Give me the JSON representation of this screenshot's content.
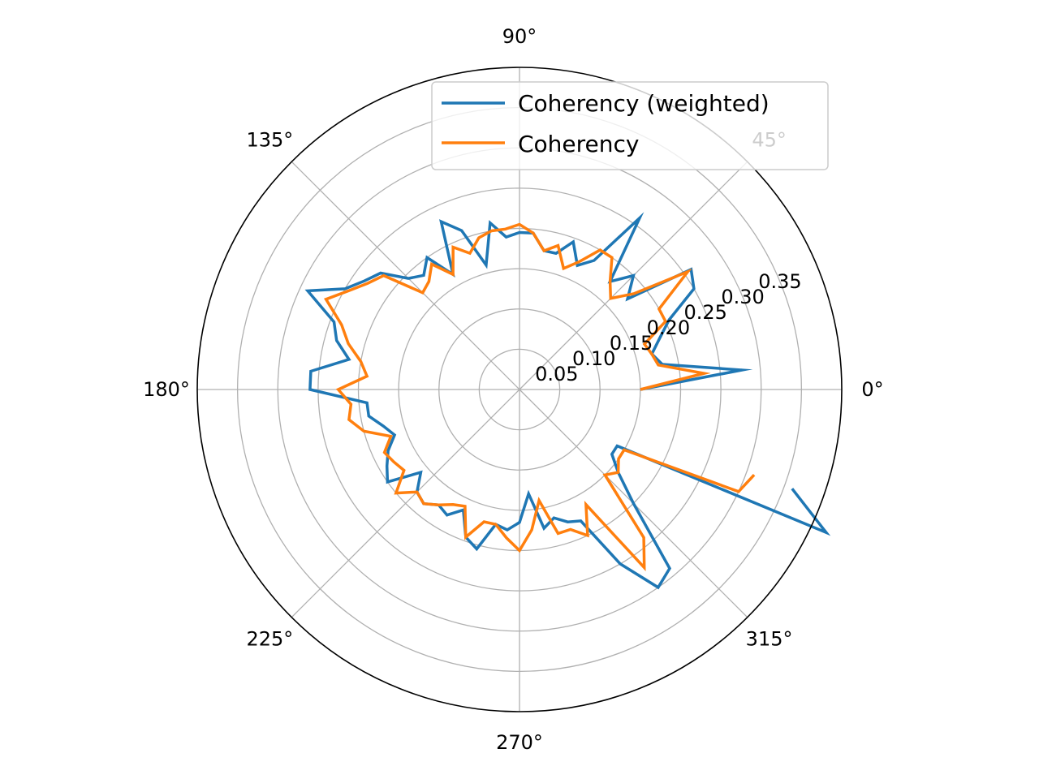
{
  "chart_data": {
    "type": "line",
    "projection": "polar",
    "title": "",
    "grid": true,
    "rlim": [
      0,
      0.4
    ],
    "radial_ticks": [
      0.05,
      0.1,
      0.15,
      0.2,
      0.25,
      0.3,
      0.35
    ],
    "radial_tick_labels": [
      "0.05",
      "0.10",
      "0.15",
      "0.20",
      "0.25",
      "0.30",
      "0.35"
    ],
    "angle_ticks_deg": [
      0,
      45,
      90,
      135,
      180,
      225,
      270,
      315
    ],
    "angle_tick_labels": [
      "0°",
      "45°",
      "90°",
      "135°",
      "180°",
      "225°",
      "270°",
      "315°"
    ],
    "legend_position": "top-right",
    "series": [
      {
        "name": "Coherency (weighted)",
        "color": "#1f77b4",
        "theta_deg": [
          0,
          5,
          10,
          15,
          20,
          25,
          30,
          35,
          40,
          45,
          50,
          55,
          60,
          65,
          70,
          75,
          80,
          85,
          90,
          95,
          100,
          105,
          110,
          115,
          120,
          125,
          130,
          135,
          140,
          145,
          150,
          155,
          160,
          165,
          170,
          175,
          180,
          185,
          190,
          195,
          200,
          205,
          210,
          215,
          220,
          225,
          230,
          235,
          240,
          245,
          250,
          255,
          260,
          265,
          270,
          275,
          280,
          285,
          290,
          295,
          300,
          305,
          310,
          315,
          320,
          325,
          330,
          335,
          340
        ],
        "r": [
          0.15,
          0.277,
          0.18,
          0.17,
          0.185,
          0.205,
          0.25,
          0.26,
          0.175,
          0.2,
          0.175,
          0.26,
          0.185,
          0.17,
          0.195,
          0.175,
          0.175,
          0.195,
          0.195,
          0.19,
          0.21,
          0.16,
          0.21,
          0.23,
          0.165,
          0.2,
          0.185,
          0.195,
          0.225,
          0.235,
          0.25,
          0.29,
          0.245,
          0.235,
          0.215,
          0.26,
          0.26,
          0.19,
          0.19,
          0.175,
          0.165,
          0.18,
          0.19,
          0.2,
          0.16,
          0.18,
          0.185,
          0.175,
          0.18,
          0.165,
          0.195,
          0.205,
          0.17,
          0.175,
          0.165,
          0.13,
          0.175,
          0.165,
          0.175,
          0.18,
          0.25,
          0.3,
          0.29,
          0.2,
          0.16,
          0.14,
          0.14,
          0.42,
          0.36
        ]
      },
      {
        "name": "Coherency",
        "color": "#ff7f0e",
        "theta_deg": [
          0,
          5,
          10,
          15,
          20,
          25,
          30,
          35,
          40,
          45,
          50,
          55,
          60,
          65,
          70,
          75,
          80,
          85,
          90,
          95,
          100,
          105,
          110,
          115,
          120,
          125,
          130,
          135,
          140,
          145,
          150,
          155,
          160,
          165,
          170,
          175,
          180,
          185,
          190,
          195,
          200,
          205,
          210,
          215,
          220,
          225,
          230,
          235,
          240,
          245,
          250,
          255,
          260,
          265,
          270,
          275,
          280,
          285,
          290,
          295,
          300,
          305,
          310,
          315,
          320,
          325,
          330,
          335,
          340
        ],
        "r": [
          0.15,
          0.23,
          0.175,
          0.17,
          0.165,
          0.2,
          0.2,
          0.255,
          0.185,
          0.16,
          0.175,
          0.2,
          0.2,
          0.175,
          0.16,
          0.185,
          0.175,
          0.195,
          0.205,
          0.2,
          0.2,
          0.195,
          0.18,
          0.195,
          0.165,
          0.19,
          0.175,
          0.17,
          0.22,
          0.23,
          0.245,
          0.265,
          0.235,
          0.22,
          0.2,
          0.19,
          0.225,
          0.21,
          0.215,
          0.2,
          0.17,
          0.185,
          0.18,
          0.175,
          0.2,
          0.18,
          0.185,
          0.175,
          0.165,
          0.16,
          0.195,
          0.17,
          0.17,
          0.185,
          0.2,
          0.175,
          0.14,
          0.185,
          0.185,
          0.2,
          0.165,
          0.27,
          0.24,
          0.15,
          0.16,
          0.15,
          0.15,
          0.3,
          0.31
        ]
      }
    ]
  }
}
